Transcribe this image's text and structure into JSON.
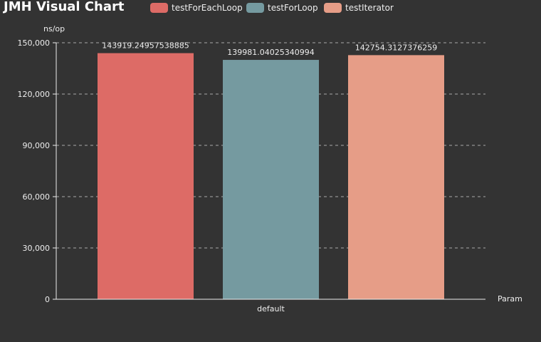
{
  "chart_data": {
    "type": "bar",
    "title": "JMH Visual Chart",
    "xlabel": "Param",
    "ylabel": "ns/op",
    "categories": [
      "default"
    ],
    "series": [
      {
        "name": "testForEachLoop",
        "values": [
          143919.24957538885
        ],
        "label": "143919.24957538885",
        "color": "#dd6b66"
      },
      {
        "name": "testForLoop",
        "values": [
          139981.04025340994
        ],
        "label": "139981.04025340994",
        "color": "#759aa0"
      },
      {
        "name": "testIterator",
        "values": [
          142754.3127376259
        ],
        "label": "142754.3127376259",
        "color": "#e69d87"
      }
    ],
    "ylim": [
      0,
      150000
    ],
    "yticks": [
      {
        "value": 0,
        "label": "0"
      },
      {
        "value": 30000,
        "label": "30,000"
      },
      {
        "value": 60000,
        "label": "60,000"
      },
      {
        "value": 90000,
        "label": "90,000"
      },
      {
        "value": 120000,
        "label": "120,000"
      },
      {
        "value": 150000,
        "label": "150,000"
      }
    ],
    "grid": true,
    "legend_position": "top"
  }
}
